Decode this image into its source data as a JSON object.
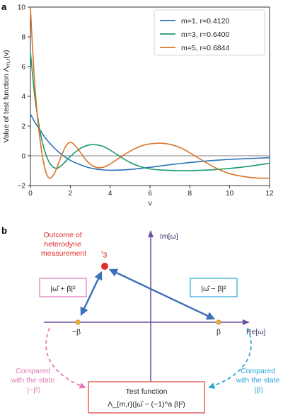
{
  "panel_a": {
    "letter": "a",
    "chart_data": {
      "type": "line",
      "title": "",
      "xlabel": "ν",
      "ylabel": "Value of test function Λ_{m,r}(ν)",
      "xlim": [
        0,
        12
      ],
      "ylim": [
        -2,
        10
      ],
      "xticks": [
        "0",
        "2",
        "4",
        "6",
        "8",
        "10",
        "12"
      ],
      "yticks": [
        "−2",
        "0",
        "2",
        "4",
        "6",
        "8",
        "10"
      ],
      "grid": false,
      "legend_position": "top-right",
      "series": [
        {
          "name": "m=1, r=0.4120",
          "color": "#2a73b8",
          "x": [
            0,
            0.25,
            0.5,
            0.75,
            1,
            1.5,
            2,
            2.5,
            3,
            3.5,
            4,
            5,
            6,
            7,
            8,
            9,
            10,
            11,
            12
          ],
          "y": [
            2.8,
            2.2,
            1.7,
            1.2,
            0.8,
            0.15,
            -0.3,
            -0.6,
            -0.82,
            -0.93,
            -0.97,
            -0.92,
            -0.77,
            -0.6,
            -0.45,
            -0.33,
            -0.24,
            -0.18,
            -0.13
          ]
        },
        {
          "name": "m=3, r=0.6400",
          "color": "#1a9a6c",
          "x": [
            0,
            0.2,
            0.4,
            0.6,
            0.8,
            1.0,
            1.3,
            1.6,
            2.0,
            2.4,
            2.8,
            3.2,
            3.6,
            4.0,
            4.5,
            5.0,
            5.5,
            6.0,
            6.5,
            7.0,
            7.5,
            8.0,
            9.0,
            10.0,
            11.0,
            12.0
          ],
          "y": [
            7.0,
            4.2,
            2.3,
            0.9,
            0.0,
            -0.55,
            -0.85,
            -0.6,
            -0.05,
            0.4,
            0.68,
            0.75,
            0.65,
            0.38,
            -0.05,
            -0.45,
            -0.72,
            -0.88,
            -0.95,
            -0.98,
            -1.0,
            -1.0,
            -0.95,
            -0.85,
            -0.7,
            -0.5
          ]
        },
        {
          "name": "m=5, r=0.6844",
          "color": "#d9742b",
          "x": [
            0,
            0.1,
            0.2,
            0.3,
            0.4,
            0.5,
            0.6,
            0.7,
            0.8,
            0.9,
            1.0,
            1.2,
            1.4,
            1.6,
            1.8,
            2.0,
            2.2,
            2.5,
            2.8,
            3.1,
            3.4,
            3.7,
            4.0,
            4.4,
            4.8,
            5.2,
            5.6,
            6.0,
            6.4,
            6.8,
            7.2,
            7.6,
            8.0,
            8.5,
            9.0,
            9.5,
            10.0,
            10.5,
            11.0,
            11.5,
            12.0
          ],
          "y": [
            10.0,
            7.4,
            5.2,
            3.4,
            2.0,
            0.9,
            0.0,
            -0.7,
            -1.2,
            -1.45,
            -1.5,
            -1.2,
            -0.55,
            0.15,
            0.7,
            0.9,
            0.75,
            0.25,
            -0.3,
            -0.65,
            -0.8,
            -0.75,
            -0.55,
            -0.2,
            0.15,
            0.45,
            0.68,
            0.8,
            0.85,
            0.82,
            0.7,
            0.5,
            0.2,
            -0.2,
            -0.6,
            -0.95,
            -1.2,
            -1.35,
            -1.45,
            -1.5,
            -1.5
          ]
        }
      ]
    },
    "legend": [
      {
        "label": "m=1, r=0.4120",
        "color": "#2a73b8"
      },
      {
        "label": "m=3, r=0.6400",
        "color": "#1a9a6c"
      },
      {
        "label": "m=5, r=0.6844",
        "color": "#d9742b"
      }
    ]
  },
  "panel_b": {
    "letter": "b",
    "im_axis_label": "Im[ω]",
    "re_axis_label": "Re[ω]",
    "outcome_label_lines": [
      "Outcome of",
      "heterodyne",
      "measurement"
    ],
    "omega_hat_label": "ω̂",
    "left_box_label": "|ω̂ + β|²",
    "right_box_label": "|ω̂ − β|²",
    "minus_beta_label": "−β",
    "beta_label": "β",
    "left_compare_lines": [
      "Compared",
      "with the state",
      "|−β⟩"
    ],
    "right_compare_lines": [
      "Compared",
      "with the state",
      "|β⟩"
    ],
    "test_box_title": "Test function",
    "test_box_formula": "Λ_{m,r}(|ω̂ − (−1)^a β|²)",
    "colors": {
      "axis": "#6a4f9e",
      "arrow": "#3b6fb6",
      "measurement_point": "#e02b2b",
      "outcome_text": "#e02b2b",
      "beta_points": "#f2b233",
      "left_box": "#d977b8",
      "right_box": "#2aa6d9",
      "test_box": "#e03a3a",
      "left_compare": "#e27bb7",
      "right_compare": "#2aa6d9"
    }
  }
}
